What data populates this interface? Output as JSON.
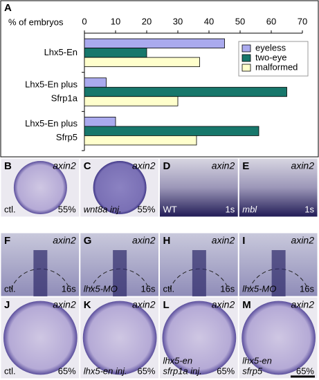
{
  "chart_data": {
    "type": "hbar",
    "panel": "A",
    "xlabel": "% of embryos",
    "categories": [
      [
        "Lhx5-En"
      ],
      [
        "Lhx5-En plus",
        "Sfrp1a"
      ],
      [
        "Lhx5-En plus",
        "Sfrp5"
      ]
    ],
    "series": [
      {
        "name": "eyeless",
        "color": "#aaaaee",
        "values": [
          45,
          7,
          10
        ]
      },
      {
        "name": "two-eye",
        "color": "#17776b",
        "values": [
          20,
          65,
          56
        ]
      },
      {
        "name": "malformed",
        "color": "#ffffcc",
        "values": [
          37,
          30,
          36
        ]
      }
    ],
    "xlim": [
      0,
      70
    ],
    "xticks": [
      0,
      10,
      20,
      30,
      40,
      50,
      60,
      70
    ],
    "legend": "upper right"
  },
  "panels": [
    {
      "letter": "B",
      "gene": "axin2",
      "left": [
        "ctl."
      ],
      "right": "55%"
    },
    {
      "letter": "C",
      "gene": "axin2",
      "left": [
        "wnt8a inj."
      ],
      "right": "55%"
    },
    {
      "letter": "D",
      "gene": "axin2",
      "left": [
        "WT"
      ],
      "right": "1s"
    },
    {
      "letter": "E",
      "gene": "axin2",
      "left": [
        "mbl"
      ],
      "right": "1s"
    },
    {
      "letter": "F",
      "gene": "axin2",
      "left": [
        "ctl."
      ],
      "right": "16s"
    },
    {
      "letter": "G",
      "gene": "axin2",
      "left": [
        "lhx5-MO"
      ],
      "right": "16s"
    },
    {
      "letter": "H",
      "gene": "axin2",
      "left": [
        "ctl."
      ],
      "right": "16s"
    },
    {
      "letter": "I",
      "gene": "axin2",
      "left": [
        "lhx5-MO"
      ],
      "right": "16s"
    },
    {
      "letter": "J",
      "gene": "axin2",
      "left": [
        "ctl."
      ],
      "right": "65%"
    },
    {
      "letter": "K",
      "gene": "axin2",
      "left": [
        "lhx5-en inj."
      ],
      "right": "65%"
    },
    {
      "letter": "L",
      "gene": "axin2",
      "left": [
        "lhx5-en",
        "sfrp1a inj."
      ],
      "right": "65%"
    },
    {
      "letter": "M",
      "gene": "axin2",
      "left": [
        "lhx5-en",
        "sfrp5"
      ],
      "right": "65%"
    }
  ]
}
